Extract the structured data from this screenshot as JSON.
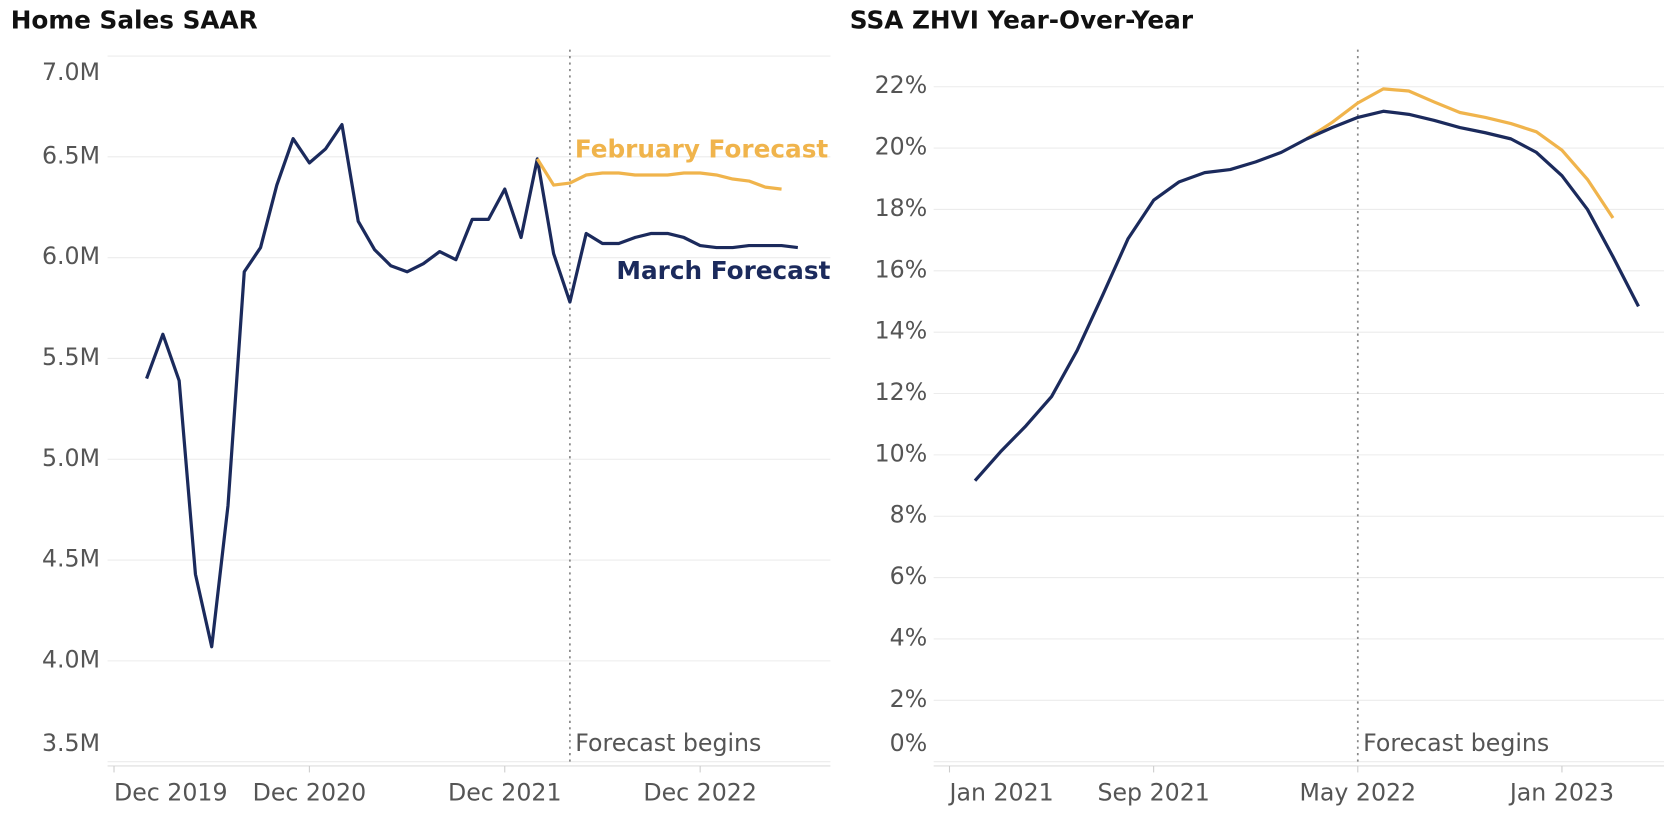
{
  "chart_data": [
    {
      "type": "line",
      "title": "Home Sales SAAR",
      "x": [
        "2020-02",
        "2020-03",
        "2020-04",
        "2020-05",
        "2020-06",
        "2020-07",
        "2020-08",
        "2020-09",
        "2020-10",
        "2020-11",
        "2020-12",
        "2021-01",
        "2021-02",
        "2021-03",
        "2021-04",
        "2021-05",
        "2021-06",
        "2021-07",
        "2021-08",
        "2021-09",
        "2021-10",
        "2021-11",
        "2021-12",
        "2022-01",
        "2022-02",
        "2022-03",
        "2022-04",
        "2022-05",
        "2022-06",
        "2022-07",
        "2022-08",
        "2022-09",
        "2022-10",
        "2022-11",
        "2022-12",
        "2023-01",
        "2023-02",
        "2023-03",
        "2023-04",
        "2023-05",
        "2023-06"
      ],
      "series": [
        {
          "name": "March Forecast",
          "color": "#1b2a5c",
          "values": [
            5.4,
            5.62,
            5.39,
            4.43,
            4.07,
            4.77,
            5.93,
            6.05,
            6.36,
            6.59,
            6.47,
            6.54,
            6.66,
            6.18,
            6.04,
            5.96,
            5.93,
            5.97,
            6.03,
            5.99,
            6.19,
            6.19,
            6.34,
            6.1,
            6.49,
            6.02,
            5.78,
            6.12,
            6.07,
            6.07,
            6.1,
            6.12,
            6.12,
            6.1,
            6.06,
            6.05,
            6.05,
            6.06,
            6.06,
            6.06,
            6.05
          ]
        },
        {
          "name": "February Forecast",
          "color": "#f0b44c",
          "values": [
            null,
            null,
            null,
            null,
            null,
            null,
            null,
            null,
            null,
            null,
            null,
            null,
            null,
            null,
            null,
            null,
            null,
            null,
            null,
            null,
            null,
            null,
            null,
            null,
            6.49,
            6.36,
            6.37,
            6.41,
            6.42,
            6.42,
            6.41,
            6.41,
            6.41,
            6.42,
            6.42,
            6.41,
            6.39,
            6.38,
            6.35,
            6.34,
            null
          ]
        }
      ],
      "xlim": [
        "2019-12",
        "2023-08"
      ],
      "xticks": [
        {
          "value": "2019-12",
          "label": "Dec 2019"
        },
        {
          "value": "2020-12",
          "label": "Dec 2020"
        },
        {
          "value": "2021-12",
          "label": "Dec 2021"
        },
        {
          "value": "2022-12",
          "label": "Dec 2022"
        }
      ],
      "ylim": [
        3.5,
        7.0
      ],
      "yticks": [
        {
          "value": 3.5,
          "label": "3.5M"
        },
        {
          "value": 4.0,
          "label": "4.0M"
        },
        {
          "value": 4.5,
          "label": "4.5M"
        },
        {
          "value": 5.0,
          "label": "5.0M"
        },
        {
          "value": 5.5,
          "label": "5.5M"
        },
        {
          "value": 6.0,
          "label": "6.0M"
        },
        {
          "value": 6.5,
          "label": "6.5M"
        },
        {
          "value": 7.0,
          "label": "7.0M"
        }
      ],
      "grid": true,
      "forecast_start": "2022-04",
      "annotation": "Forecast begins"
    },
    {
      "type": "line",
      "title": "SSA ZHVI Year-Over-Year",
      "x": [
        "2021-02",
        "2021-03",
        "2021-04",
        "2021-05",
        "2021-06",
        "2021-07",
        "2021-08",
        "2021-09",
        "2021-10",
        "2021-11",
        "2021-12",
        "2022-01",
        "2022-02",
        "2022-03",
        "2022-04",
        "2022-05",
        "2022-06",
        "2022-07",
        "2022-08",
        "2022-09",
        "2022-10",
        "2022-11",
        "2022-12",
        "2023-01",
        "2023-02",
        "2023-03",
        "2023-04"
      ],
      "series": [
        {
          "color": "#f0b44c",
          "values": [
            null,
            null,
            null,
            null,
            null,
            null,
            null,
            null,
            null,
            null,
            null,
            null,
            null,
            20.3,
            20.84,
            21.47,
            21.93,
            21.86,
            21.5,
            21.16,
            21.0,
            20.8,
            20.53,
            19.93,
            18.98,
            17.72,
            null
          ]
        },
        {
          "color": "#1b2a5c",
          "values": [
            9.16,
            10.1,
            10.95,
            11.9,
            13.4,
            15.2,
            17.05,
            18.3,
            18.9,
            19.2,
            19.3,
            19.55,
            19.86,
            20.3,
            20.67,
            21.0,
            21.2,
            21.1,
            20.9,
            20.67,
            20.5,
            20.3,
            19.86,
            19.1,
            18.0,
            16.46,
            14.84
          ]
        }
      ],
      "xlim": [
        "2020-12",
        "2023-05"
      ],
      "xticks": [
        {
          "value": "2021-01",
          "label": "Jan 2021"
        },
        {
          "value": "2021-09",
          "label": "Sep 2021"
        },
        {
          "value": "2022-05",
          "label": "May 2022"
        },
        {
          "value": "2023-01",
          "label": "Jan 2023"
        }
      ],
      "ylim": [
        0,
        23
      ],
      "yticks": [
        {
          "value": 0,
          "label": "0%"
        },
        {
          "value": 2,
          "label": "2%"
        },
        {
          "value": 4,
          "label": "4%"
        },
        {
          "value": 6,
          "label": "6%"
        },
        {
          "value": 8,
          "label": "8%"
        },
        {
          "value": 10,
          "label": "10%"
        },
        {
          "value": 12,
          "label": "12%"
        },
        {
          "value": 14,
          "label": "14%"
        },
        {
          "value": 16,
          "label": "16%"
        },
        {
          "value": 18,
          "label": "18%"
        },
        {
          "value": 20,
          "label": "20%"
        },
        {
          "value": 22,
          "label": "22%"
        }
      ],
      "grid": true,
      "forecast_start": "2022-05",
      "annotation": "Forecast begins"
    }
  ]
}
